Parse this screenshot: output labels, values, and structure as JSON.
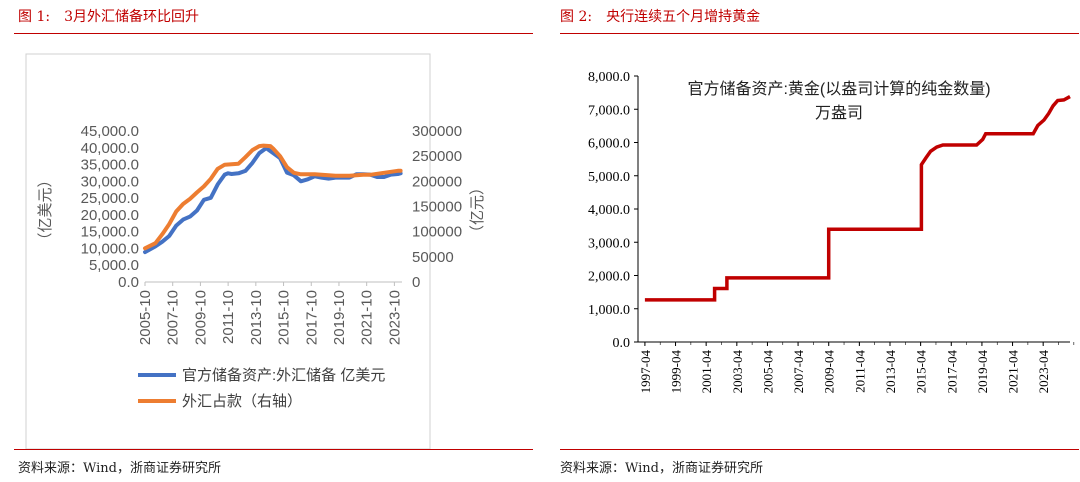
{
  "left": {
    "figure_label": "图 1:",
    "figure_title": "3月外汇储备环比回升",
    "source": "资料来源：Wind，浙商证券研究所"
  },
  "right": {
    "figure_label": "图 2:",
    "figure_title": "央行连续五个月增持黄金",
    "source": "资料来源：Wind，浙商证券研究所"
  },
  "colors": {
    "accent": "#c00000",
    "blue": "#4472c4",
    "orange": "#ed7d31",
    "gold_line": "#c00000"
  },
  "chart_data": [
    {
      "type": "line",
      "title": "",
      "ylabel_left": "（亿美元）",
      "ylabel_right": "（亿元）",
      "xlabel": "",
      "x_tick_labels": [
        "2005-10",
        "2007-10",
        "2009-10",
        "2011-10",
        "2013-10",
        "2015-10",
        "2017-10",
        "2019-10",
        "2021-10",
        "2023-10"
      ],
      "x_range": [
        2005.75,
        2024.3
      ],
      "ylim_left": [
        0,
        45000
      ],
      "y_ticks_left": [
        "0.0",
        "5,000.0",
        "10,000.0",
        "15,000.0",
        "20,000.0",
        "25,000.0",
        "30,000.0",
        "35,000.0",
        "40,000.0",
        "45,000.0"
      ],
      "ylim_right": [
        0,
        300000
      ],
      "y_ticks_right": [
        "0",
        "50000",
        "100000",
        "150000",
        "200000",
        "250000",
        "300000"
      ],
      "legend": [
        "官方储备资产:外汇储备 亿美元",
        "外汇占款（右轴）"
      ],
      "legend_position": "bottom",
      "series": [
        {
          "name": "官方储备资产:外汇储备 亿美元",
          "axis": "left",
          "x": [
            2005.75,
            2006.5,
            2007,
            2007.5,
            2008,
            2008.5,
            2009,
            2009.5,
            2010,
            2010.5,
            2011,
            2011.5,
            2011.75,
            2012,
            2012.5,
            2013,
            2013.5,
            2014,
            2014.5,
            2015,
            2015.5,
            2016,
            2016.5,
            2017,
            2017.5,
            2018,
            2018.5,
            2019,
            2019.5,
            2020,
            2020.5,
            2021,
            2021.5,
            2022,
            2022.5,
            2023,
            2023.5,
            2024,
            2024.2
          ],
          "values": [
            8900,
            10600,
            12000,
            13700,
            16800,
            18600,
            19500,
            21300,
            24500,
            25100,
            29100,
            32000,
            32400,
            32200,
            32400,
            33100,
            35500,
            38400,
            39900,
            38400,
            36900,
            32600,
            31800,
            30000,
            30600,
            31500,
            31100,
            30800,
            31100,
            31100,
            31100,
            32100,
            32100,
            32000,
            31300,
            31300,
            32000,
            32200,
            32400
          ]
        },
        {
          "name": "外汇占款（右轴）",
          "axis": "right",
          "x": [
            2005.75,
            2006.5,
            2007,
            2007.5,
            2008,
            2008.5,
            2009,
            2009.5,
            2010,
            2010.5,
            2011,
            2011.5,
            2012,
            2012.5,
            2013,
            2013.5,
            2014,
            2014.3,
            2014.8,
            2015,
            2015.5,
            2016,
            2016.5,
            2017,
            2017.5,
            2018,
            2018.5,
            2019,
            2019.5,
            2020,
            2020.5,
            2021,
            2021.5,
            2022,
            2022.5,
            2023,
            2023.5,
            2024,
            2024.2
          ],
          "values": [
            67000,
            77000,
            95000,
            115000,
            140000,
            155000,
            165000,
            178000,
            190000,
            205000,
            225000,
            233000,
            234000,
            235000,
            248000,
            262000,
            270000,
            271000,
            270000,
            265000,
            250000,
            228000,
            217000,
            214000,
            214000,
            214000,
            213000,
            212000,
            211000,
            211000,
            211000,
            212000,
            213000,
            213000,
            215000,
            217000,
            219000,
            221000,
            221000
          ]
        }
      ]
    },
    {
      "type": "line",
      "title": "官方储备资产:黄金(以盎司计算的纯金数量)",
      "title_line2": "万盎司",
      "xlabel": "",
      "ylabel": "",
      "x_tick_labels": [
        "1997-04",
        "1999-04",
        "2001-04",
        "2003-04",
        "2005-04",
        "2007-04",
        "2009-04",
        "2011-04",
        "2013-04",
        "2015-04",
        "2017-04",
        "2019-04",
        "2021-04",
        "2023-04"
      ],
      "x_range": [
        1996.8,
        2025.0
      ],
      "ylim": [
        0,
        8000
      ],
      "y_ticks": [
        "0.0",
        "1,000.0",
        "2,000.0",
        "3,000.0",
        "4,000.0",
        "5,000.0",
        "6,000.0",
        "7,000.0",
        "8,000.0"
      ],
      "legend": [],
      "series": [
        {
          "name": "官方储备资产:黄金(以盎司计算的纯金数量)",
          "x": [
            1997.25,
            2001.8,
            2001.8,
            2002.6,
            2002.6,
            2009.25,
            2009.25,
            2015.3,
            2015.3,
            2015.6,
            2015.9,
            2016.3,
            2016.7,
            2017,
            2017.5,
            2018.5,
            2018.9,
            2019.3,
            2019.5,
            2020,
            2022.6,
            2022.9,
            2023.3,
            2023.6,
            2023.9,
            2024.2,
            2024.6,
            2025.0
          ],
          "values": [
            1267,
            1267,
            1608,
            1608,
            1929,
            1929,
            3389,
            3389,
            5332,
            5541,
            5736,
            5862,
            5924,
            5924,
            5924,
            5924,
            5924,
            6094,
            6264,
            6264,
            6264,
            6512,
            6676,
            6869,
            7105,
            7264,
            7280,
            7380
          ]
        }
      ]
    }
  ]
}
